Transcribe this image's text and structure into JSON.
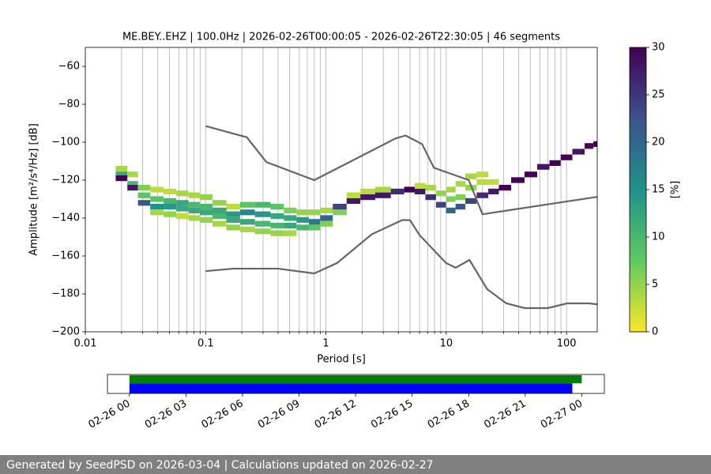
{
  "chart_data": [
    {
      "type": "heatmap",
      "title": "ME.BEY..EHZ | 100.0Hz | 2026-02-26T00:00:05 - 2026-02-26T22:30:05 | 46 segments",
      "xlabel": "Period [s]",
      "ylabel": "Amplitude [m²/s⁴/Hz] [dB]",
      "xscale": "log",
      "xlim": [
        0.01,
        180
      ],
      "xticks": [
        0.01,
        0.1,
        1,
        10,
        100
      ],
      "ylim": [
        -200,
        -50
      ],
      "yticks": [
        {
          "value": -200,
          "label": "−200"
        },
        {
          "value": -180,
          "label": "−180"
        },
        {
          "value": -160,
          "label": "−160"
        },
        {
          "value": -140,
          "label": "−140"
        },
        {
          "value": -120,
          "label": "−120"
        },
        {
          "value": -100,
          "label": "−100"
        },
        {
          "value": -80,
          "label": "−80"
        },
        {
          "value": -60,
          "label": "−60"
        }
      ],
      "grid": "x",
      "x": [
        0.02,
        0.02,
        0.02,
        0.025,
        0.025,
        0.025,
        0.03,
        0.03,
        0.03,
        0.04,
        0.04,
        0.04,
        0.04,
        0.05,
        0.05,
        0.05,
        0.05,
        0.065,
        0.065,
        0.065,
        0.065,
        0.08,
        0.08,
        0.08,
        0.08,
        0.1,
        0.1,
        0.1,
        0.1,
        0.13,
        0.13,
        0.13,
        0.13,
        0.17,
        0.17,
        0.17,
        0.17,
        0.22,
        0.22,
        0.22,
        0.22,
        0.3,
        0.3,
        0.3,
        0.3,
        0.4,
        0.4,
        0.4,
        0.4,
        0.5,
        0.5,
        0.5,
        0.5,
        0.65,
        0.65,
        0.65,
        0.8,
        0.8,
        0.8,
        1,
        1,
        1,
        1.3,
        1.3,
        1.7,
        1.7,
        2.2,
        2.2,
        3,
        3,
        4,
        5,
        6,
        6,
        7.5,
        7.5,
        9,
        9,
        11,
        11,
        11,
        13,
        13,
        13,
        16,
        16,
        16,
        20,
        20,
        20,
        25,
        25,
        30,
        40,
        50,
        65,
        80,
        100,
        125,
        160,
        175
      ],
      "y": [
        -114,
        -117,
        -119,
        -117,
        -122,
        -124,
        -124,
        -128,
        -132,
        -125,
        -130,
        -134,
        -137,
        -126,
        -131,
        -134,
        -138,
        -127,
        -132,
        -135,
        -139,
        -128,
        -133,
        -136,
        -140,
        -129,
        -134,
        -137,
        -141,
        -132,
        -136,
        -139,
        -143,
        -134,
        -138,
        -141,
        -145,
        -133,
        -137,
        -142,
        -146,
        -133,
        -138,
        -143,
        -147,
        -134,
        -139,
        -144,
        -148,
        -136,
        -140,
        -144,
        -148,
        -137,
        -141,
        -145,
        -137,
        -142,
        -145,
        -136,
        -140,
        -143,
        -137,
        -134,
        -131,
        -128,
        -129,
        -126,
        -128,
        -125,
        -126,
        -125,
        -126,
        -123,
        -129,
        -124,
        -133,
        -127,
        -136,
        -130,
        -125,
        -134,
        -129,
        -122,
        -131,
        -124,
        -118,
        -128,
        -121,
        -117,
        -126,
        -121,
        -124,
        -120,
        -117,
        -113,
        -111,
        -108,
        -105,
        -102,
        -101
      ],
      "values": [
        4,
        12,
        30,
        4,
        10,
        28,
        6,
        8,
        22,
        3,
        8,
        15,
        4,
        3,
        10,
        14,
        5,
        4,
        12,
        12,
        3,
        4,
        10,
        12,
        4,
        5,
        10,
        12,
        5,
        5,
        12,
        10,
        4,
        3,
        14,
        12,
        5,
        8,
        16,
        12,
        4,
        10,
        14,
        10,
        5,
        8,
        12,
        10,
        5,
        6,
        12,
        12,
        4,
        5,
        14,
        10,
        5,
        18,
        8,
        4,
        20,
        6,
        6,
        24,
        28,
        3,
        28,
        3,
        28,
        4,
        26,
        30,
        28,
        3,
        26,
        4,
        24,
        5,
        20,
        6,
        4,
        22,
        6,
        4,
        24,
        5,
        4,
        26,
        3,
        3,
        28,
        3,
        30,
        30,
        30,
        28,
        30,
        30,
        28,
        30,
        30
      ],
      "colormap": [
        "#fde725",
        "#5ec962",
        "#21918c",
        "#3b528b",
        "#440154"
      ],
      "clim": [
        0,
        30
      ],
      "cticks": [
        0,
        5,
        10,
        15,
        20,
        25,
        30
      ],
      "clabel": "[%]",
      "lines": [
        {
          "color": "#666666",
          "x": [
            0.1,
            0.22,
            0.32,
            0.8,
            3.8,
            4.6,
            6.3,
            7.9,
            15.4,
            20,
            354.8
          ],
          "values": [
            -91.5,
            -97.4,
            -110.5,
            -120,
            -98,
            -96.5,
            -101,
            -113.5,
            -120,
            -138,
            -126
          ]
        },
        {
          "color": "#666666",
          "x": [
            0.1,
            0.17,
            0.4,
            0.8,
            1.24,
            2.4,
            4.3,
            5,
            6,
            10,
            12,
            15.6,
            21.9,
            31.6,
            45,
            70,
            101,
            154,
            328
          ],
          "values": [
            -168,
            -166.7,
            -166.7,
            -169.2,
            -163.7,
            -148.6,
            -141.1,
            -141.1,
            -149,
            -163.8,
            -166.2,
            -162.1,
            -177.5,
            -185,
            -187.5,
            -187.5,
            -185,
            -185,
            -187.5
          ]
        }
      ]
    },
    {
      "type": "timeline",
      "xlim": [
        "2026-02-25T22:50",
        "2026-02-27T01:12"
      ],
      "xticks": [
        {
          "value": "2026-02-26T00:00",
          "label": "02-26 00"
        },
        {
          "value": "2026-02-26T03:00",
          "label": "02-26 03"
        },
        {
          "value": "2026-02-26T06:00",
          "label": "02-26 06"
        },
        {
          "value": "2026-02-26T09:00",
          "label": "02-26 09"
        },
        {
          "value": "2026-02-26T12:00",
          "label": "02-26 12"
        },
        {
          "value": "2026-02-26T15:00",
          "label": "02-26 15"
        },
        {
          "value": "2026-02-26T18:00",
          "label": "02-26 18"
        },
        {
          "value": "2026-02-26T21:00",
          "label": "02-26 21"
        },
        {
          "value": "2026-02-27T00:00",
          "label": "02-27 00"
        }
      ],
      "bars": [
        {
          "color": "#008000",
          "start": "2026-02-26T00:00:05",
          "end": "2026-02-27T00:00:00"
        },
        {
          "color": "#0000ff",
          "start": "2026-02-26T00:00:05",
          "end": "2026-02-26T23:30:05"
        }
      ]
    }
  ],
  "footer": "Generated by SeedPSD on 2026-03-04 | Calculations updated on 2026-02-27"
}
